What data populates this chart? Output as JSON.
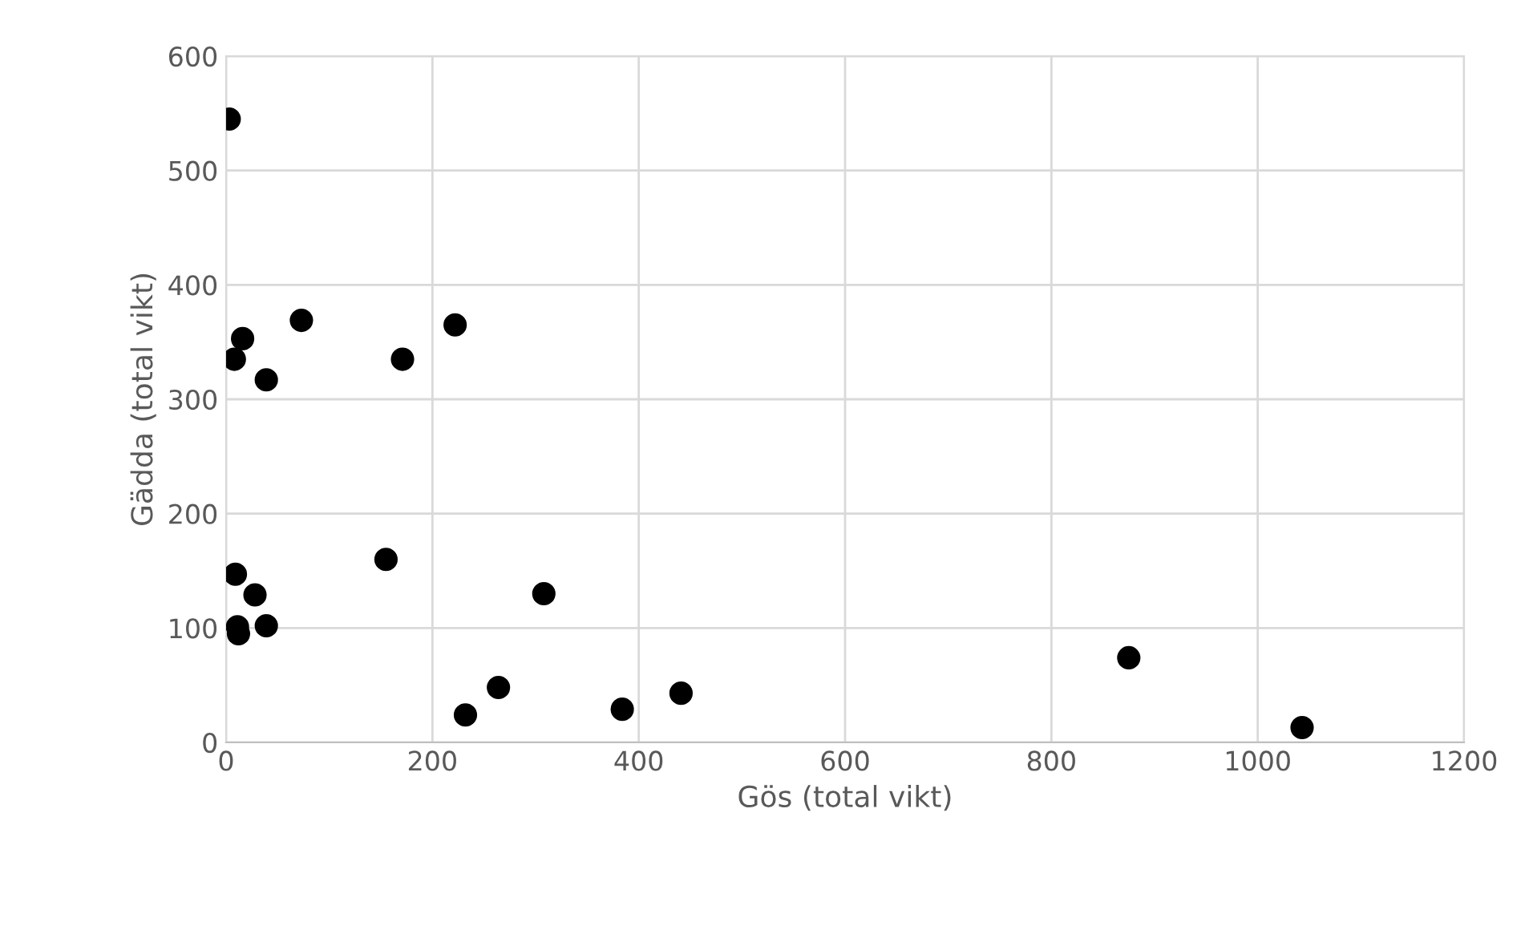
{
  "chart_data": {
    "type": "scatter",
    "xlabel": "Gös (total vikt)",
    "ylabel": "Gädda (total vikt)",
    "x": [
      3,
      8,
      16,
      39,
      73,
      171,
      222,
      9,
      11,
      12,
      28,
      39,
      155,
      232,
      264,
      308,
      384,
      441,
      875,
      1043
    ],
    "series": [
      {
        "color": "#000000",
        "values": [
          545,
          335,
          353,
          317,
          369,
          335,
          365,
          147,
          101,
          95,
          129,
          102,
          160,
          24,
          48,
          130,
          29,
          43,
          74,
          13
        ]
      }
    ],
    "xlim": [
      0,
      1200
    ],
    "xticks": [
      0,
      200,
      400,
      600,
      800,
      1000,
      1200
    ],
    "ylim": [
      0,
      600
    ],
    "yticks": [
      0,
      100,
      200,
      300,
      400,
      500,
      600
    ],
    "grid": true,
    "marker": "circle",
    "legend": false
  }
}
